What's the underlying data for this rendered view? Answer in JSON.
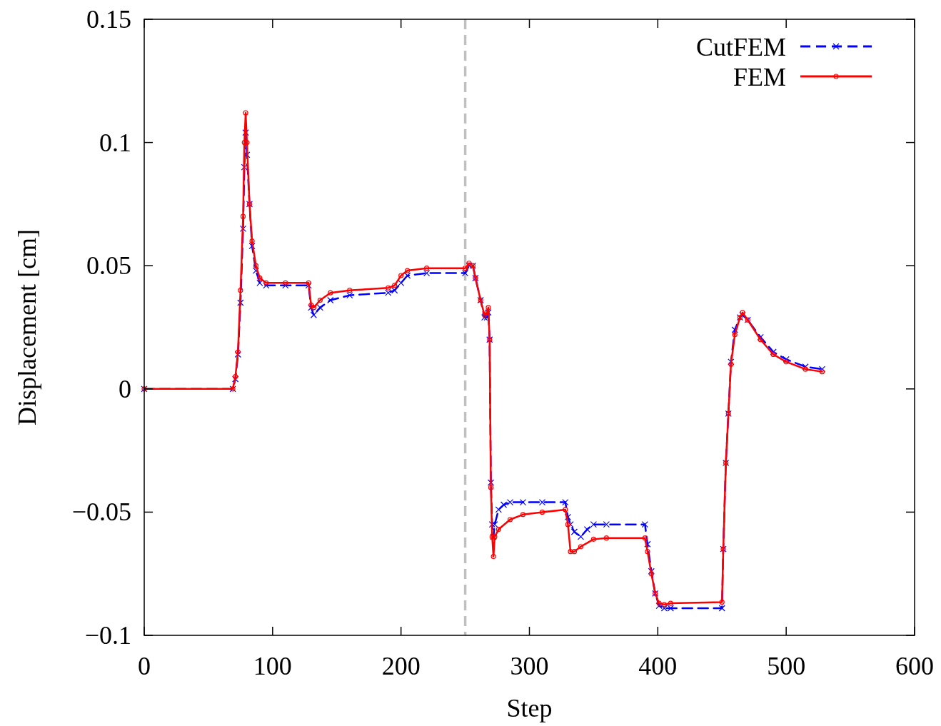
{
  "chart_data": {
    "type": "line",
    "xlabel": "Step",
    "ylabel": "Displacement [cm]",
    "xlim": [
      0,
      600
    ],
    "xticks": [
      0,
      100,
      200,
      300,
      400,
      500,
      600
    ],
    "ylim": [
      -0.1,
      0.15
    ],
    "yticks": [
      {
        "value": -0.1,
        "label": "−0.1"
      },
      {
        "value": -0.05,
        "label": "−0.05"
      },
      0,
      0.05,
      0.1,
      0.15
    ],
    "grid": false,
    "legend": "top right",
    "ref_lines": [
      {
        "axis": "x",
        "value": 250,
        "color": "#c0c0c0",
        "line_style": "dashed"
      }
    ],
    "series": [
      {
        "name": "CutFEM",
        "color": "#0000ff",
        "marker": "cross",
        "line_style": "dashed",
        "x": [
          0,
          69,
          71,
          73,
          75,
          77,
          78,
          79,
          80,
          82,
          84,
          87,
          90,
          95,
          110,
          128,
          130,
          132,
          137,
          145,
          160,
          190,
          195,
          200,
          205,
          220,
          250,
          253,
          256,
          258,
          262,
          265,
          267,
          268,
          269,
          270,
          271,
          272,
          273,
          276,
          280,
          285,
          295,
          310,
          328,
          330,
          332,
          335,
          340,
          345,
          350,
          360,
          390,
          392,
          395,
          398,
          401,
          405,
          410,
          450,
          451,
          453,
          455,
          457,
          460,
          464,
          466,
          470,
          480,
          490,
          500,
          515,
          528
        ],
        "values": [
          0,
          0,
          0.004,
          0.014,
          0.035,
          0.065,
          0.09,
          0.104,
          0.095,
          0.075,
          0.058,
          0.048,
          0.043,
          0.042,
          0.042,
          0.042,
          0.033,
          0.03,
          0.033,
          0.036,
          0.038,
          0.039,
          0.04,
          0.043,
          0.046,
          0.047,
          0.047,
          0.05,
          0.05,
          0.045,
          0.036,
          0.029,
          0.029,
          0.031,
          0.02,
          -0.038,
          -0.055,
          -0.06,
          -0.055,
          -0.049,
          -0.047,
          -0.046,
          -0.046,
          -0.046,
          -0.046,
          -0.052,
          -0.055,
          -0.058,
          -0.06,
          -0.057,
          -0.055,
          -0.055,
          -0.055,
          -0.063,
          -0.074,
          -0.083,
          -0.088,
          -0.089,
          -0.089,
          -0.089,
          -0.065,
          -0.03,
          -0.01,
          0.011,
          0.024,
          0.029,
          0.03,
          0.028,
          0.021,
          0.015,
          0.012,
          0.009,
          0.008
        ]
      },
      {
        "name": "FEM",
        "color": "#ff0000",
        "marker": "circle",
        "line_style": "solid",
        "x": [
          0,
          69,
          71,
          73,
          75,
          77,
          78,
          79,
          80,
          82,
          84,
          87,
          90,
          95,
          110,
          128,
          130,
          132,
          137,
          145,
          160,
          190,
          195,
          200,
          205,
          220,
          250,
          253,
          256,
          258,
          262,
          265,
          267,
          268,
          269,
          270,
          271,
          272,
          273,
          276,
          285,
          295,
          310,
          328,
          330,
          332,
          335,
          340,
          350,
          360,
          390,
          392,
          395,
          398,
          401,
          405,
          410,
          450,
          451,
          453,
          455,
          457,
          460,
          464,
          466,
          470,
          480,
          490,
          500,
          515,
          528
        ],
        "values": [
          0,
          0,
          0.005,
          0.015,
          0.04,
          0.07,
          0.1,
          0.112,
          0.1,
          0.075,
          0.06,
          0.05,
          0.045,
          0.043,
          0.043,
          0.043,
          0.034,
          0.033,
          0.036,
          0.039,
          0.04,
          0.041,
          0.042,
          0.046,
          0.048,
          0.049,
          0.049,
          0.051,
          0.05,
          0.045,
          0.036,
          0.03,
          0.031,
          0.033,
          0.02,
          -0.04,
          -0.06,
          -0.068,
          -0.06,
          -0.057,
          -0.053,
          -0.051,
          -0.05,
          -0.049,
          -0.055,
          -0.066,
          -0.066,
          -0.064,
          -0.061,
          -0.0605,
          -0.0605,
          -0.066,
          -0.075,
          -0.083,
          -0.087,
          -0.0875,
          -0.087,
          -0.0865,
          -0.065,
          -0.03,
          -0.01,
          0.01,
          0.022,
          0.029,
          0.031,
          0.028,
          0.02,
          0.014,
          0.011,
          0.008,
          0.007
        ]
      }
    ]
  }
}
